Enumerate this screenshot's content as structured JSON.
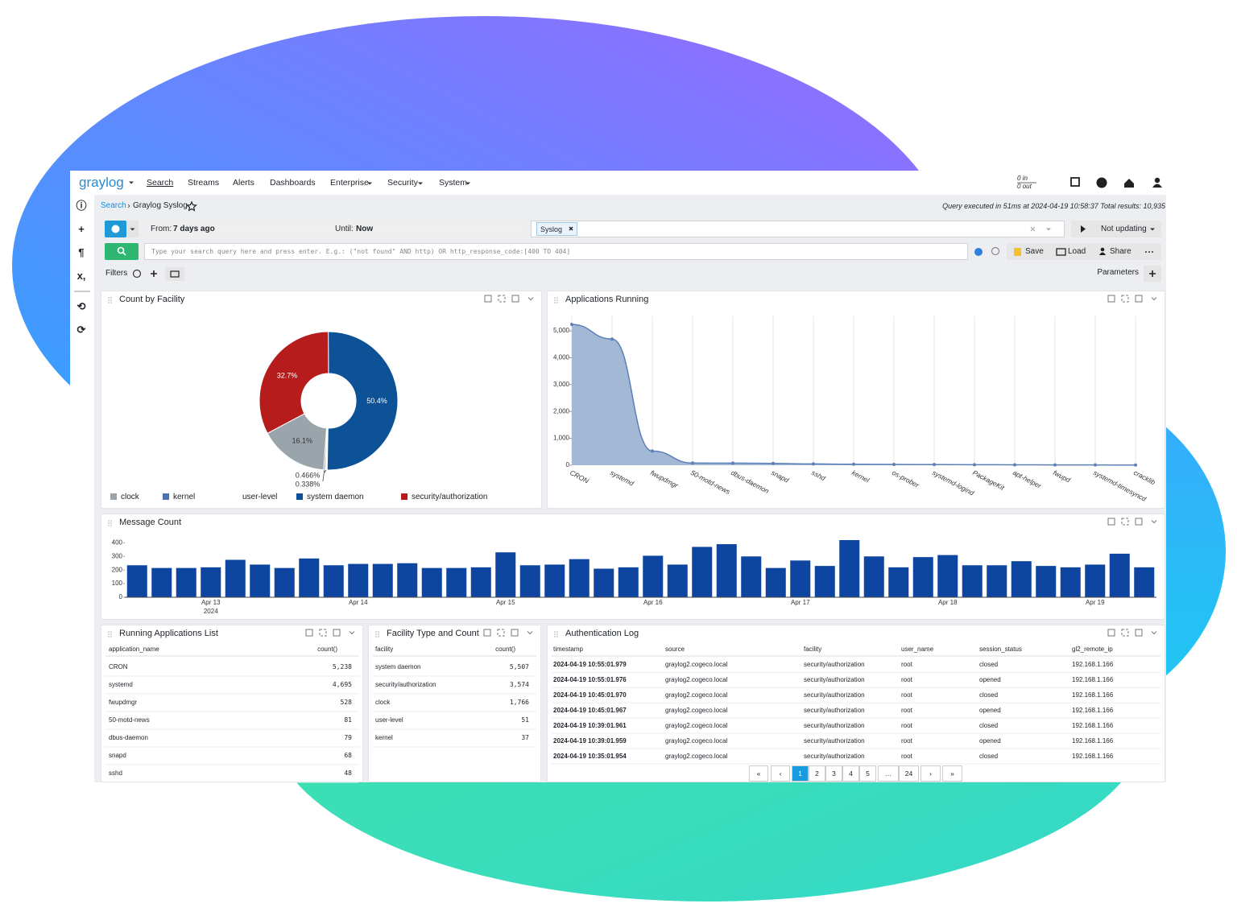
{
  "nav": {
    "logo": "graylog",
    "menu": [
      "Search",
      "Streams",
      "Alerts",
      "Dashboards",
      "Enterprise",
      "Security",
      "System"
    ],
    "throughput_in": "0 in",
    "throughput_out": "0 out"
  },
  "sidebar_icons": [
    "ⓘ",
    "+",
    "¶",
    "x,",
    "⟲",
    "⟳"
  ],
  "breadcrumb": [
    "Search",
    "Graylog Syslog"
  ],
  "query_info": "Query executed in 51ms at 2024-04-19 10:58:37 Total results: 10,935",
  "search_bar": {
    "from_label": "From:",
    "from": "7 days ago",
    "until_label": "Until:",
    "until": "Now",
    "stream": "Syslog",
    "refresh": "Not updating",
    "placeholder": "Type your search query here and press enter. E.g.: (\"not found\" AND http) OR http_response_code:[400 TO 404]",
    "actions": [
      "Save",
      "Load",
      "Share"
    ],
    "filters": "Filters",
    "parameters": "Parameters"
  },
  "widgets": [
    {
      "title": "Count by Facility",
      "chart": {
        "type": "pie",
        "categories": [
          "clock",
          "kernel",
          "user-level",
          "system daemon",
          "security/authorization"
        ],
        "values": [
          16.1,
          0.338,
          0.466,
          50.4,
          32.7
        ],
        "value_labels": [
          "16.1%",
          "0.338%",
          "0.466%",
          "50.4%",
          "32.7%"
        ],
        "colors": [
          "#9aa4ab",
          "#4f70ad",
          "#ffffff",
          "#0d5196",
          "#b71c1c"
        ]
      }
    },
    {
      "title": "Applications Running",
      "chart": {
        "type": "area",
        "categories": [
          "CRON",
          "systemd",
          "fwupdmgr",
          "50-motd-news",
          "dbus-daemon",
          "snapd",
          "sshd",
          "kernel",
          "os-prober",
          "systemd-logind",
          "PackageKit",
          "apt-helper",
          "fwupd",
          "systemd-timesyncd",
          "cracklib"
        ],
        "values": [
          5238,
          4695,
          528,
          81,
          79,
          68,
          48,
          37,
          30,
          25,
          20,
          15,
          12,
          10,
          8
        ],
        "ylim": [
          0,
          5300
        ],
        "yticks": [
          0,
          {
            "value": 1000,
            "label": "1,000"
          },
          {
            "value": 2000,
            "label": "2,000"
          },
          {
            "value": 3000,
            "label": "3,000"
          },
          {
            "value": 4000,
            "label": "4,000"
          },
          {
            "value": 5000,
            "label": "5,000"
          }
        ],
        "color": "#5b80b8",
        "fill": "#a3b8d5",
        "grid": true
      }
    },
    {
      "title": "Message Count",
      "chart": {
        "type": "bar",
        "categories": [
          null,
          null,
          null,
          "Apr 13",
          null,
          null,
          null,
          null,
          null,
          "Apr 14",
          null,
          null,
          null,
          null,
          null,
          "Apr 15",
          null,
          null,
          null,
          null,
          null,
          "Apr 16",
          null,
          null,
          null,
          null,
          null,
          "Apr 17",
          null,
          null,
          null,
          null,
          null,
          "Apr 18",
          null,
          null,
          null,
          null,
          null,
          "Apr 19",
          null,
          null
        ],
        "year_label": "2024",
        "values": [
          235,
          215,
          215,
          220,
          275,
          240,
          215,
          285,
          235,
          245,
          245,
          250,
          215,
          215,
          220,
          330,
          235,
          240,
          280,
          210,
          220,
          305,
          240,
          370,
          390,
          300,
          215,
          270,
          230,
          420,
          300,
          220,
          295,
          310,
          235,
          235,
          265,
          230,
          220,
          240,
          320,
          220
        ],
        "ylim": [
          0,
          420
        ],
        "yticks": [
          0,
          100,
          200,
          300,
          400
        ],
        "color": "#0e45a0"
      }
    },
    {
      "title": "Running Applications List",
      "table": {
        "columns": [
          "application_name",
          "count()"
        ],
        "rows": [
          [
            "CRON",
            "5,238"
          ],
          [
            "systemd",
            "4,695"
          ],
          [
            "fwupdmgr",
            "528"
          ],
          [
            "50-motd-news",
            "81"
          ],
          [
            "dbus-daemon",
            "79"
          ],
          [
            "snapd",
            "68"
          ],
          [
            "sshd",
            "48"
          ]
        ]
      }
    },
    {
      "title": "Facility Type and Count",
      "table": {
        "columns": [
          "facility",
          "count()"
        ],
        "rows": [
          [
            "system daemon",
            "5,507"
          ],
          [
            "security/authorization",
            "3,574"
          ],
          [
            "clock",
            "1,766"
          ],
          [
            "user-level",
            "51"
          ],
          [
            "kernel",
            "37"
          ]
        ]
      }
    },
    {
      "title": "Authentication Log",
      "table": {
        "columns": [
          "timestamp",
          "source",
          "facility",
          "user_name",
          "session_status",
          "gl2_remote_ip"
        ],
        "rows": [
          [
            "2024-04-19 10:55:01.979",
            "graylog2.cogeco.local",
            "security/authorization",
            "root",
            "closed",
            "192.168.1.166"
          ],
          [
            "2024-04-19 10:55:01.976",
            "graylog2.cogeco.local",
            "security/authorization",
            "root",
            "opened",
            "192.168.1.166"
          ],
          [
            "2024-04-19 10:45:01.970",
            "graylog2.cogeco.local",
            "security/authorization",
            "root",
            "closed",
            "192.168.1.166"
          ],
          [
            "2024-04-19 10:45:01.967",
            "graylog2.cogeco.local",
            "security/authorization",
            "root",
            "opened",
            "192.168.1.166"
          ],
          [
            "2024-04-19 10:39:01.961",
            "graylog2.cogeco.local",
            "security/authorization",
            "root",
            "closed",
            "192.168.1.166"
          ],
          [
            "2024-04-19 10:39:01.959",
            "graylog2.cogeco.local",
            "security/authorization",
            "root",
            "opened",
            "192.168.1.166"
          ],
          [
            "2024-04-19 10:35:01.954",
            "graylog2.cogeco.local",
            "security/authorization",
            "root",
            "closed",
            "192.168.1.166"
          ]
        ]
      },
      "pagination": [
        "«",
        "‹",
        "1",
        "2",
        "3",
        "4",
        "5",
        "…",
        "24",
        "›",
        "»"
      ]
    }
  ]
}
